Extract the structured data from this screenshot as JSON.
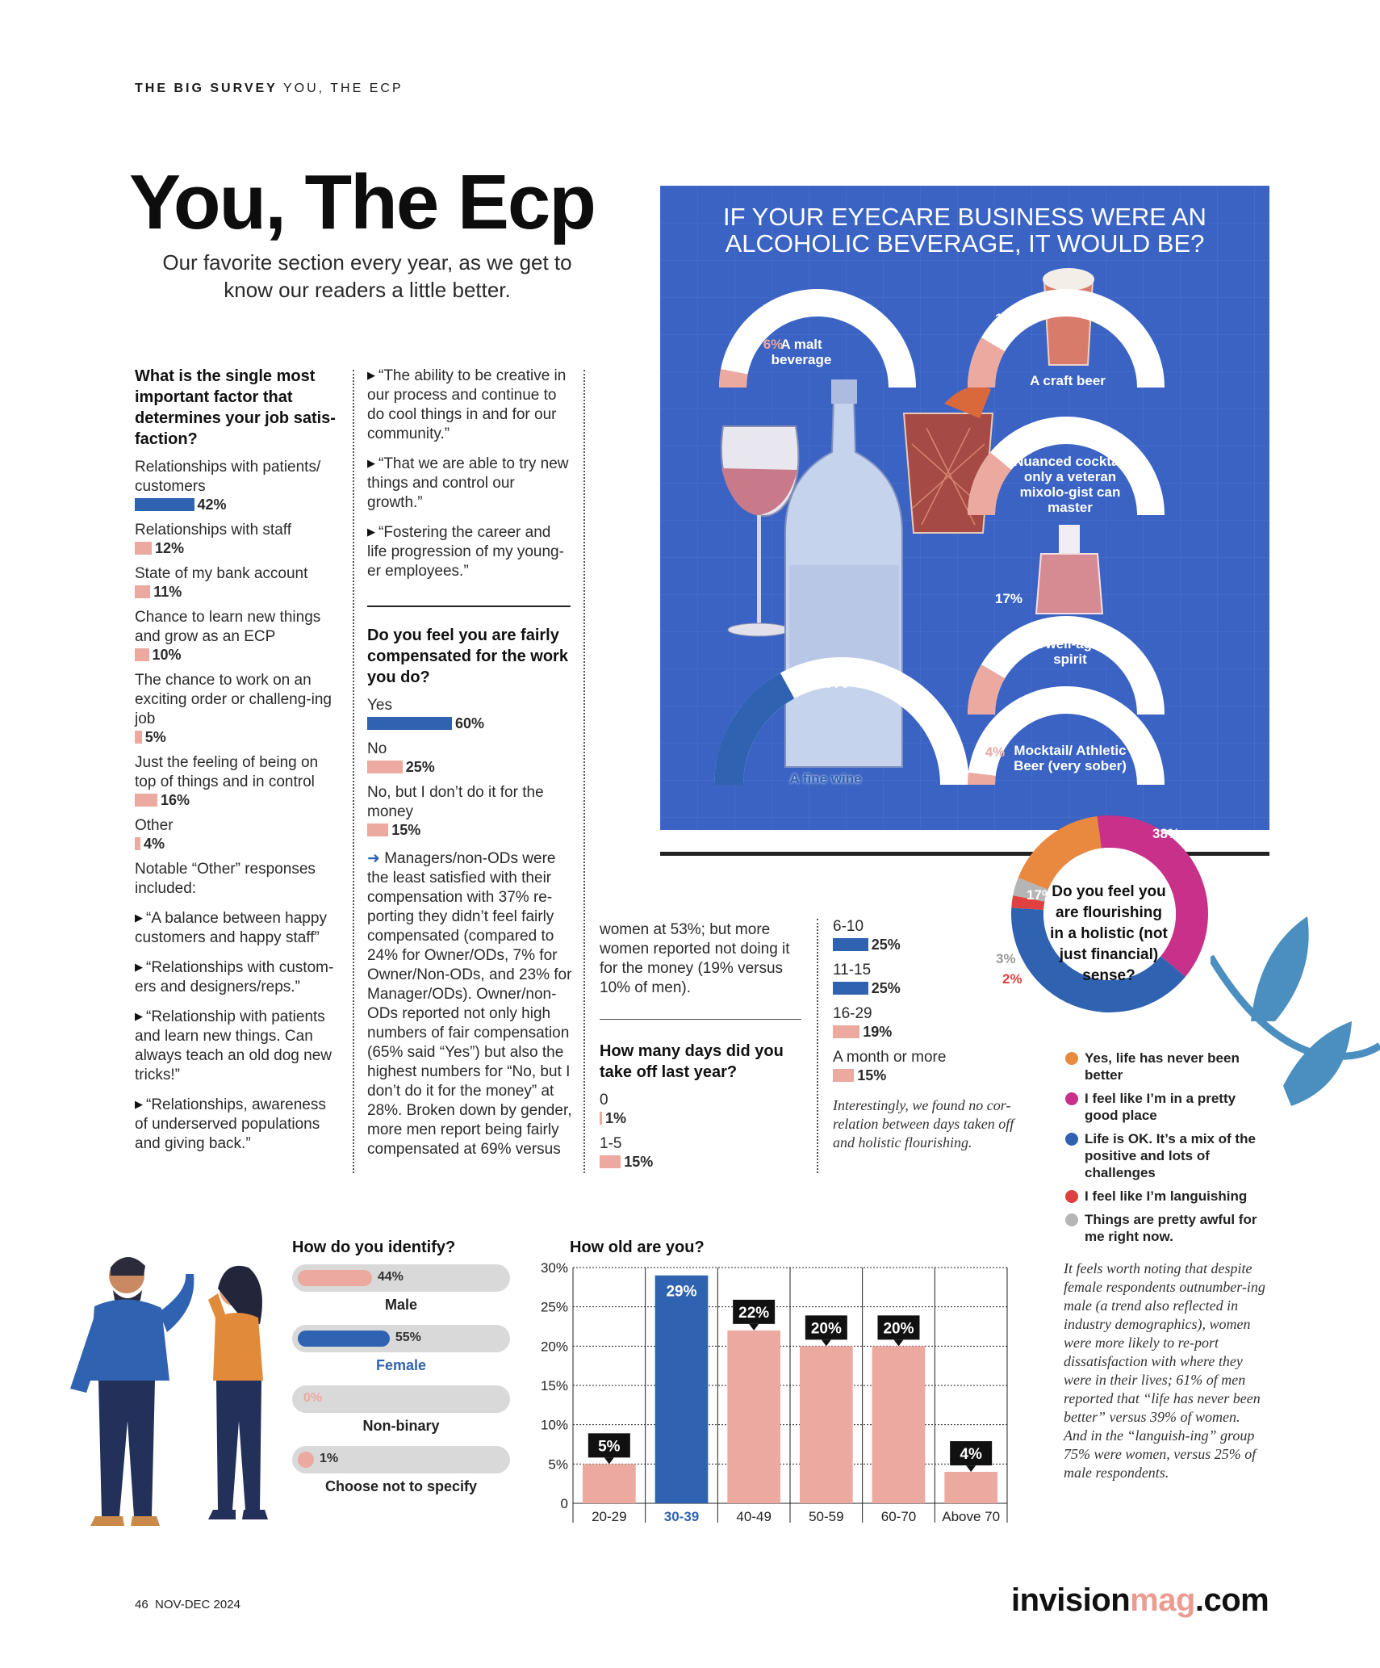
{
  "kicker": {
    "section": "THE BIG SURVEY",
    "sub": "YOU, THE ECP"
  },
  "title": "You, The Ecp",
  "subtitle": "Our favorite section every year, as we get to know our readers a little better.",
  "job_satisfaction": {
    "question": "What is the single most important factor that determines your job satis-faction?",
    "options": [
      {
        "label": "Relationships with patients/ customers",
        "pct": "42%",
        "value": 42,
        "color": "blue"
      },
      {
        "label": "Relationships with staff",
        "pct": "12%",
        "value": 12,
        "color": "pink"
      },
      {
        "label": "State of my bank account",
        "pct": "11%",
        "value": 11,
        "color": "pink"
      },
      {
        "label": "Chance to learn new things and grow as an ECP",
        "pct": "10%",
        "value": 10,
        "color": "pink"
      },
      {
        "label": "The chance to work on an exciting order or challeng-ing job",
        "pct": "5%",
        "value": 5,
        "color": "pink"
      },
      {
        "label": "Just the feeling of being on top of things and in control",
        "pct": "16%",
        "value": 16,
        "color": "pink"
      },
      {
        "label": "Other",
        "pct": "4%",
        "value": 4,
        "color": "pink"
      }
    ],
    "other_intro": "Notable “Other” responses included:",
    "other_quotes": [
      "“A balance between happy customers and happy staff”",
      "“Relationships with custom-ers and designers/reps.”",
      "“Relationship with patients and learn new things. Can always teach an old dog new tricks!”",
      "“Relationships, awareness of underserved populations and giving back.”"
    ]
  },
  "col2_quotes": [
    "“The ability to be creative in our process and continue to do cool things in and for our community.”",
    "“That we are able to try new things and control our growth.”",
    "“Fostering the career and life progression of my young-er employees.”"
  ],
  "compensation": {
    "question": "Do you feel you are fairly compensated for the work you do?",
    "options": [
      {
        "label": "Yes",
        "pct": "60%",
        "value": 60,
        "color": "blue"
      },
      {
        "label": "No",
        "pct": "25%",
        "value": 25,
        "color": "pink"
      },
      {
        "label": "No, but I don’t do it for the money",
        "pct": "15%",
        "value": 15,
        "color": "pink"
      }
    ],
    "note": "Managers/non-ODs were the least satisfied with their compensation with 37% re-porting they didn’t feel fairly compensated (compared to 24% for Owner/ODs, 7% for Owner/Non-ODs, and 23% for Manager/ODs). Owner/non-ODs reported not only high numbers of fair compensation (65% said “Yes”) but also the highest numbers for “No, but I don’t do it for the money” at 28%. Broken down by gender, more men report being fairly compensated at 69% versus",
    "note_cont": "women at 53%; but more women reported not doing it for the money (19% versus 10% of men)."
  },
  "days_off": {
    "question": "How many days did you take off last year?",
    "options": [
      {
        "label": "0",
        "pct": "1%",
        "value": 1,
        "color": "pink"
      },
      {
        "label": "1-5",
        "pct": "15%",
        "value": 15,
        "color": "pink"
      },
      {
        "label": "6-10",
        "pct": "25%",
        "value": 25,
        "color": "blue"
      },
      {
        "label": "11-15",
        "pct": "25%",
        "value": 25,
        "color": "blue"
      },
      {
        "label": "16-29",
        "pct": "19%",
        "value": 19,
        "color": "pink"
      },
      {
        "label": "A month or more",
        "pct": "15%",
        "value": 15,
        "color": "pink"
      }
    ],
    "note": "Interestingly, we found no cor-relation between days taken off and holistic flourishing."
  },
  "beverage": {
    "title_line1": "IF YOUR EYECARE BUSINESS WERE AN",
    "title_line2": "ALCOHOLIC BEVERAGE, IT WOULD BE?",
    "items": [
      {
        "label": "A malt beverage",
        "pct": "6%",
        "value": 6
      },
      {
        "label": "A craft beer",
        "pct": "17%",
        "value": 17
      },
      {
        "label": "Nuanced cocktail only a veteran mixolo-gist can master",
        "pct": "22%",
        "value": 22
      },
      {
        "label": "A well-aged spirit",
        "pct": "17%",
        "value": 17
      },
      {
        "label": "A fine wine",
        "pct": "34%",
        "value": 34
      },
      {
        "label": "Mocktail/ Athletic Beer (very sober)",
        "pct": "4%",
        "value": 4
      }
    ],
    "colors": {
      "panel": "#3a63c4",
      "arc_bg": "#ffffff",
      "arc_pink": "#eba9a0",
      "arc_blue": "#2f62b1"
    }
  },
  "flourishing": {
    "question": "Do you feel you are flourishing in a holistic (not just financial) sense?",
    "chart_data": {
      "type": "pie",
      "categories": [
        "Yes, life has never been better",
        "I feel like I’m in a pretty good place",
        "Life is OK. It’s a mix of the positive and lots of challenges",
        "I feel like I’m languishing",
        "Things are pretty awful for me right now."
      ],
      "values": [
        17,
        38,
        40,
        2,
        3
      ],
      "labels": [
        "17%",
        "38%",
        "40%",
        "2%",
        "3%"
      ],
      "colors": [
        "#e8893f",
        "#c8308a",
        "#2f62b1",
        "#e04040",
        "#b5b5b5"
      ]
    },
    "note": "It feels worth noting that despite female respondents outnumber-ing male (a trend also reflected in industry demographics), women were more likely to re-port dissatisfaction with where they were in their lives; 61% of men reported that “life has never been better” versus 39% of women. And in the “languish-ing” group 75% were women, versus 25% of male respondents."
  },
  "identify": {
    "question": "How do you identify?",
    "options": [
      {
        "label": "Male",
        "pct": "44%",
        "value": 44,
        "color": "pink"
      },
      {
        "label": "Female",
        "pct": "55%",
        "value": 55,
        "color": "blue"
      },
      {
        "label": "Non-binary",
        "pct": "0%",
        "value": 0,
        "color": "pink"
      },
      {
        "label": "Choose not to specify",
        "pct": "1%",
        "value": 1,
        "color": "pink"
      }
    ]
  },
  "age": {
    "question": "How old are you?",
    "chart_data": {
      "type": "bar",
      "categories": [
        "20-29",
        "30-39",
        "40-49",
        "50-59",
        "60-70",
        "Above 70"
      ],
      "values": [
        5,
        29,
        22,
        20,
        20,
        4
      ],
      "labels": [
        "5%",
        "29%",
        "22%",
        "20%",
        "20%",
        "4%"
      ],
      "highlight": "30-39",
      "ylim": [
        0,
        30
      ],
      "yticks": [
        "0",
        "5%",
        "10%",
        "15%",
        "20%",
        "25%",
        "30%"
      ],
      "grid": true,
      "colors": {
        "bar": "#eba9a0",
        "highlight": "#2f62b1"
      }
    }
  },
  "footer": {
    "page": "46",
    "issue": "NOV-DEC 2024",
    "brand_a": "invision",
    "brand_b": "mag",
    "brand_c": ".com"
  }
}
